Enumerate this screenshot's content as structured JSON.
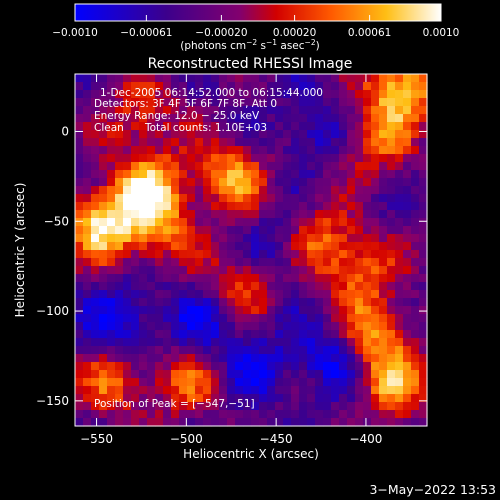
{
  "colorbar": {
    "ticks": [
      "−0.0010",
      "−0.00061",
      "−0.00020",
      "0.00020",
      "0.00061",
      "0.0010"
    ],
    "tick_values": [
      -0.001,
      -0.00061,
      -0.0002,
      0.0002,
      0.00061,
      0.001
    ],
    "range": [
      -0.001,
      0.001
    ],
    "unit_open": "(photons cm",
    "unit_exp1": "−2",
    "unit_mid": " s",
    "unit_exp2": "−1",
    "unit_mid2": " asec",
    "unit_exp3": "−2",
    "unit_close": ")"
  },
  "chart_data": {
    "type": "heatmap",
    "title": "Reconstructed RHESSI Image",
    "xlabel": "Heliocentric X (arcsec)",
    "ylabel": "Heliocentric Y (arcsec)",
    "xlim": [
      -562,
      -366
    ],
    "ylim": [
      -164,
      32
    ],
    "x_ticks": [
      -550,
      -500,
      -450,
      -400
    ],
    "x_tick_labels": [
      "−550",
      "−500",
      "−450",
      "−400"
    ],
    "y_ticks": [
      0,
      -50,
      -100,
      -150
    ],
    "y_tick_labels": [
      "0",
      "−50",
      "−100",
      "−150"
    ],
    "annotations": {
      "time_range": "1-Dec-2005 06:14:52.000 to 06:15:44.000",
      "detectors": "Detectors: 3F 4F 5F 6F 7F 8F, Att 0",
      "energy": "Energy Range: 12.0 − 25.0 keV",
      "clean": "Clean",
      "total_counts": "Total counts: 1.10E+03",
      "peak": "Position of Peak = [−547,−51]"
    },
    "peak": [
      -547,
      -51
    ],
    "hotspots": [
      {
        "x": -547,
        "y": -51,
        "v": 1.0
      },
      {
        "x": -520,
        "y": -30,
        "v": 0.85
      },
      {
        "x": -515,
        "y": -55,
        "v": 0.6
      },
      {
        "x": -475,
        "y": -25,
        "v": 0.75
      },
      {
        "x": -470,
        "y": -85,
        "v": 0.6
      },
      {
        "x": -430,
        "y": -60,
        "v": 0.65
      },
      {
        "x": -405,
        "y": -75,
        "v": 0.6
      },
      {
        "x": -395,
        "y": -110,
        "v": 0.7
      },
      {
        "x": -385,
        "y": -140,
        "v": 0.75
      },
      {
        "x": -380,
        "y": 25,
        "v": 0.95
      },
      {
        "x": -395,
        "y": -5,
        "v": 0.6
      },
      {
        "x": -540,
        "y": -140,
        "v": 0.55
      },
      {
        "x": -525,
        "y": 10,
        "v": 0.5
      },
      {
        "x": -500,
        "y": -140,
        "v": 0.5
      }
    ],
    "coldspots": [
      {
        "x": -447,
        "y": -65,
        "v": -0.5
      },
      {
        "x": -535,
        "y": -105,
        "v": -0.45
      },
      {
        "x": -490,
        "y": -105,
        "v": -0.4
      },
      {
        "x": -420,
        "y": -125,
        "v": -0.45
      },
      {
        "x": -460,
        "y": -130,
        "v": -0.35
      },
      {
        "x": -430,
        "y": 0,
        "v": -0.35
      }
    ]
  },
  "timestamp": "3−May−2022 13:53"
}
